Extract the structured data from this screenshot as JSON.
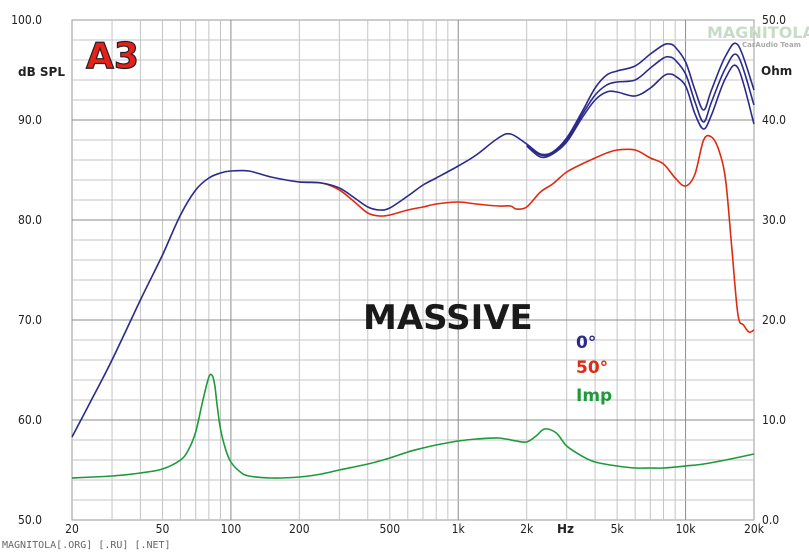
{
  "badge": "A3",
  "watermark_top": "MAGNITOLA",
  "watermark_top_sub": "CarAudio Team",
  "watermark_bottom": "MAGNITOLA[.ORG] [.RU] [.NET]",
  "chart_data": {
    "type": "line",
    "title": "MASSIVE",
    "xlabel": "Hz",
    "ylabel_left": "dB SPL",
    "ylabel_right": "Ohm",
    "x_scale": "log",
    "xlim": [
      20,
      20000
    ],
    "ylim_left": [
      50,
      100
    ],
    "ylim_right": [
      0,
      50
    ],
    "x_ticks": [
      {
        "v": 20,
        "label": "20"
      },
      {
        "v": 50,
        "label": "50"
      },
      {
        "v": 100,
        "label": "100"
      },
      {
        "v": 200,
        "label": "200"
      },
      {
        "v": 500,
        "label": "500"
      },
      {
        "v": 1000,
        "label": "1k"
      },
      {
        "v": 2000,
        "label": "2k"
      },
      {
        "v": 5000,
        "label": "5k"
      },
      {
        "v": 10000,
        "label": "10k"
      },
      {
        "v": 20000,
        "label": "20k"
      }
    ],
    "y_ticks_left": [
      {
        "v": 50,
        "label": "50.0"
      },
      {
        "v": 60,
        "label": "60.0"
      },
      {
        "v": 70,
        "label": "70.0"
      },
      {
        "v": 80,
        "label": "80.0"
      },
      {
        "v": 90,
        "label": "90.0"
      },
      {
        "v": 100,
        "label": "100.0"
      }
    ],
    "y_ticks_right": [
      {
        "v": 0,
        "label": "0.0"
      },
      {
        "v": 10,
        "label": "10.0"
      },
      {
        "v": 20,
        "label": "20.0"
      },
      {
        "v": 30,
        "label": "30.0"
      },
      {
        "v": 40,
        "label": "40.0"
      },
      {
        "v": 50,
        "label": "50.0"
      }
    ],
    "grid": true,
    "series": [
      {
        "name": "0°",
        "color": "#2b2a8c",
        "axis": "left",
        "x": [
          20,
          25,
          30,
          40,
          50,
          60,
          70,
          80,
          90,
          100,
          120,
          150,
          200,
          250,
          300,
          350,
          400,
          450,
          500,
          600,
          700,
          800,
          1000,
          1200,
          1500,
          1700,
          2000,
          2300,
          2600,
          3000,
          3500,
          4000,
          4500,
          5000,
          6000,
          7000,
          8000,
          8500,
          9000,
          10000,
          11000,
          12000,
          13000,
          15000,
          17000,
          20000
        ],
        "y": [
          58.3,
          62.5,
          66,
          72,
          76.5,
          80.5,
          83,
          84.2,
          84.7,
          84.9,
          84.9,
          84.3,
          83.8,
          83.7,
          83.2,
          82.2,
          81.3,
          81,
          81.2,
          82.4,
          83.5,
          84.2,
          85.4,
          86.5,
          88.2,
          88.6,
          87.6,
          86.6,
          86.8,
          88.2,
          90.8,
          93.2,
          94.5,
          94.9,
          95.4,
          96.6,
          97.5,
          97.6,
          97.3,
          95.8,
          93,
          91,
          93,
          96.4,
          97.5,
          93
        ]
      },
      {
        "name": "",
        "color": "#2b2a8c",
        "axis": "left",
        "x": [
          2000,
          2300,
          2600,
          3000,
          3500,
          4000,
          4500,
          5000,
          6000,
          7000,
          8000,
          8500,
          9000,
          10000,
          11000,
          12000,
          13000,
          15000,
          17000,
          20000
        ],
        "y": [
          87.5,
          86.5,
          86.7,
          88,
          90.5,
          92.5,
          93.5,
          93.8,
          94,
          95.2,
          96.2,
          96.3,
          96,
          94.6,
          91.8,
          89.8,
          91.8,
          95.2,
          96.4,
          91.5
        ]
      },
      {
        "name": "",
        "color": "#2b2a8c",
        "axis": "left",
        "x": [
          2000,
          2300,
          2600,
          3000,
          3500,
          4000,
          4500,
          5000,
          6000,
          7000,
          8000,
          8500,
          9000,
          10000,
          11000,
          12000,
          13000,
          15000,
          17000,
          20000
        ],
        "y": [
          87.4,
          86.3,
          86.6,
          87.8,
          90.2,
          92,
          92.8,
          92.8,
          92.4,
          93.2,
          94.4,
          94.6,
          94.4,
          93.4,
          90.6,
          89.1,
          90.5,
          94.2,
          95.2,
          89.6
        ]
      },
      {
        "name": "50°",
        "color": "#e02a12",
        "axis": "left",
        "x": [
          200,
          250,
          300,
          350,
          400,
          450,
          500,
          600,
          700,
          800,
          1000,
          1200,
          1500,
          1700,
          1800,
          2000,
          2300,
          2600,
          3000,
          3500,
          4000,
          4500,
          5000,
          6000,
          7000,
          8000,
          9000,
          10000,
          11000,
          12000,
          13000,
          14000,
          15000,
          16000,
          17000,
          18000,
          19000,
          20000
        ],
        "y": [
          83.8,
          83.7,
          83,
          81.8,
          80.7,
          80.4,
          80.5,
          81,
          81.3,
          81.6,
          81.8,
          81.6,
          81.4,
          81.4,
          81.1,
          81.3,
          82.8,
          83.6,
          84.8,
          85.6,
          86.2,
          86.7,
          87,
          87,
          86.2,
          85.6,
          84.2,
          83.4,
          84.6,
          88,
          88.3,
          87,
          84,
          77,
          70.5,
          69.5,
          68.8,
          69
        ]
      },
      {
        "name": "Imp",
        "color": "#1e9a3c",
        "axis": "right",
        "x": [
          20,
          30,
          40,
          50,
          60,
          65,
          70,
          75,
          80,
          83,
          85,
          87,
          90,
          95,
          100,
          110,
          120,
          150,
          200,
          250,
          300,
          400,
          500,
          600,
          700,
          800,
          1000,
          1200,
          1500,
          1800,
          2000,
          2200,
          2400,
          2700,
          3000,
          3500,
          4000,
          5000,
          6000,
          7000,
          8000,
          10000,
          12000,
          15000,
          20000
        ],
        "y": [
          4.2,
          4.4,
          4.7,
          5.1,
          6,
          7,
          8.8,
          11.8,
          14.3,
          14.4,
          13.4,
          11.5,
          9.1,
          7,
          5.8,
          4.8,
          4.4,
          4.2,
          4.3,
          4.6,
          5,
          5.6,
          6.2,
          6.8,
          7.2,
          7.5,
          7.9,
          8.1,
          8.2,
          7.9,
          7.8,
          8.4,
          9.1,
          8.7,
          7.4,
          6.4,
          5.8,
          5.4,
          5.2,
          5.2,
          5.2,
          5.4,
          5.6,
          6,
          6.6
        ]
      }
    ]
  }
}
